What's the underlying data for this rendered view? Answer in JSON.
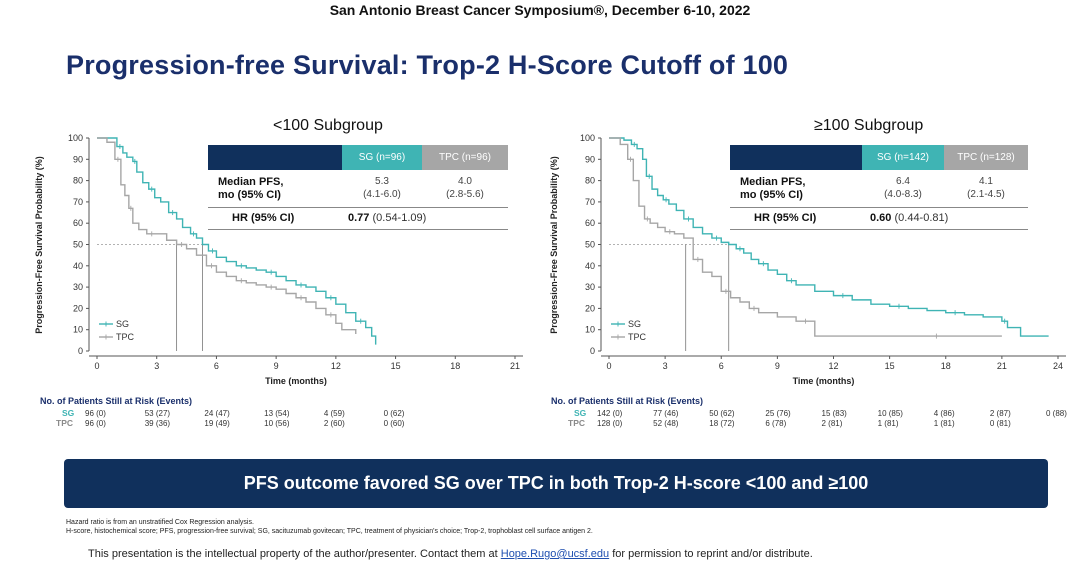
{
  "header": {
    "conference": "San Antonio Breast Cancer Symposium®, December 6-10, 2022",
    "title": "Progression-free Survival: Trop-2 H-Score Cutoff of 100"
  },
  "colors": {
    "navy": "#10305c",
    "sg": "#3fb4b4",
    "tpc": "#a6a6a6",
    "title": "#1a2f6b"
  },
  "panels": [
    {
      "subtitle": "<100 Subgroup",
      "table": {
        "sg_header": "SG (n=96)",
        "tpc_header": "TPC (n=96)",
        "median_label_1": "Median PFS,",
        "median_label_2": "mo (95% CI)",
        "sg_median": "5.3",
        "sg_ci": "(4.1-6.0)",
        "tpc_median": "4.0",
        "tpc_ci": "(2.8-5.6)",
        "hr_label": "HR (95% CI)",
        "hr_value": "0.77",
        "hr_ci": "(0.54-1.09)"
      },
      "risk": {
        "title": "No. of Patients Still at Risk (Events)",
        "sg_label": "SG",
        "tpc_label": "TPC",
        "sg": [
          "96 (0)",
          "53 (27)",
          "24 (47)",
          "13 (54)",
          "4 (59)",
          "0 (62)"
        ],
        "tpc": [
          "96 (0)",
          "39 (36)",
          "19 (49)",
          "10 (56)",
          "2 (60)",
          "0 (60)"
        ]
      }
    },
    {
      "subtitle": "≥100 Subgroup",
      "table": {
        "sg_header": "SG (n=142)",
        "tpc_header": "TPC (n=128)",
        "median_label_1": "Median PFS,",
        "median_label_2": "mo (95% CI)",
        "sg_median": "6.4",
        "sg_ci": "(4.0-8.3)",
        "tpc_median": "4.1",
        "tpc_ci": "(2.1-4.5)",
        "hr_label": "HR (95% CI)",
        "hr_value": "0.60",
        "hr_ci": "(0.44-0.81)"
      },
      "risk": {
        "title": "No. of Patients Still at Risk (Events)",
        "sg_label": "SG",
        "tpc_label": "TPC",
        "sg": [
          "142 (0)",
          "77 (46)",
          "50 (62)",
          "25 (76)",
          "15 (83)",
          "10 (85)",
          "4 (86)",
          "2 (87)",
          "0 (88)"
        ],
        "tpc": [
          "128 (0)",
          "52 (48)",
          "18 (72)",
          "6 (78)",
          "2 (81)",
          "1 (81)",
          "1 (81)",
          "0 (81)"
        ]
      }
    }
  ],
  "chart_data": [
    {
      "type": "line",
      "title": "<100 Subgroup",
      "xlabel": "Time (months)",
      "ylabel": "Progression-Free Survival Probability (%)",
      "xlim": [
        0,
        21
      ],
      "ylim": [
        0,
        100
      ],
      "xticks": [
        0,
        3,
        6,
        9,
        12,
        15,
        18,
        21
      ],
      "yticks": [
        0,
        10,
        20,
        30,
        40,
        50,
        60,
        70,
        80,
        90,
        100
      ],
      "legend": [
        "SG",
        "TPC"
      ],
      "medians": {
        "SG": 5.3,
        "TPC": 4.0
      },
      "series": [
        {
          "name": "SG",
          "x": [
            0,
            0.8,
            1.0,
            1.3,
            1.5,
            1.8,
            2.0,
            2.3,
            2.6,
            2.9,
            3.2,
            3.6,
            4.0,
            4.3,
            4.7,
            5.0,
            5.3,
            5.6,
            6.0,
            6.5,
            7.0,
            7.5,
            8.0,
            8.5,
            9.0,
            9.5,
            10.0,
            10.5,
            11.0,
            11.5,
            12.0,
            12.5,
            13.0,
            13.5,
            13.8,
            14.0
          ],
          "y": [
            100,
            100,
            96,
            93,
            91,
            89,
            84,
            79,
            76,
            72,
            70,
            65,
            62,
            58,
            55,
            53,
            50,
            47,
            44,
            42,
            40,
            39,
            38,
            37,
            35,
            33,
            31,
            30,
            28,
            25,
            22,
            18,
            14,
            11,
            7,
            3
          ]
        },
        {
          "name": "TPC",
          "x": [
            0,
            0.5,
            0.9,
            1.2,
            1.4,
            1.6,
            1.8,
            2.1,
            2.5,
            3.0,
            3.5,
            4.0,
            4.5,
            5.0,
            5.5,
            6.0,
            6.5,
            7.0,
            7.5,
            8.0,
            8.5,
            9.0,
            9.5,
            10.0,
            10.5,
            11.0,
            11.5,
            12.0,
            12.3,
            13.0
          ],
          "y": [
            100,
            98,
            90,
            78,
            73,
            67,
            60,
            57,
            55,
            55,
            52,
            50,
            48,
            45,
            40,
            37,
            35,
            33,
            32,
            31,
            30,
            29,
            27,
            25,
            23,
            20,
            17,
            13,
            10,
            8
          ]
        }
      ]
    },
    {
      "type": "line",
      "title": "≥100 Subgroup",
      "xlabel": "Time (months)",
      "ylabel": "Progression-Free Survival Probability (%)",
      "xlim": [
        0,
        24
      ],
      "ylim": [
        0,
        100
      ],
      "xticks": [
        0,
        3,
        6,
        9,
        12,
        15,
        18,
        21,
        24
      ],
      "yticks": [
        0,
        10,
        20,
        30,
        40,
        50,
        60,
        70,
        80,
        90,
        100
      ],
      "legend": [
        "SG",
        "TPC"
      ],
      "medians": {
        "SG": 6.4,
        "TPC": 4.1
      },
      "series": [
        {
          "name": "SG",
          "x": [
            0,
            0.8,
            1.2,
            1.5,
            1.8,
            2.0,
            2.3,
            2.6,
            2.9,
            3.2,
            3.6,
            4.0,
            4.5,
            5.0,
            5.5,
            6.0,
            6.4,
            6.8,
            7.2,
            7.6,
            8.0,
            8.5,
            9.0,
            9.5,
            10.0,
            11.0,
            12.0,
            13.0,
            14.0,
            15.0,
            16.0,
            17.0,
            18.0,
            19.0,
            20.0,
            21.0,
            21.3,
            22.0,
            23.5
          ],
          "y": [
            100,
            99,
            97,
            95,
            90,
            82,
            76,
            73,
            71,
            69,
            66,
            62,
            58,
            55,
            53,
            51,
            50,
            48,
            46,
            43,
            41,
            38,
            36,
            33,
            31,
            28,
            26,
            24,
            22,
            21,
            20,
            19,
            18,
            17,
            16,
            14,
            11,
            7,
            7
          ]
        },
        {
          "name": "TPC",
          "x": [
            0,
            0.6,
            1.0,
            1.3,
            1.6,
            1.9,
            2.2,
            2.6,
            3.0,
            3.5,
            4.0,
            4.5,
            5.0,
            5.5,
            6.0,
            6.5,
            7.0,
            7.5,
            8.0,
            9.0,
            10.0,
            11.0,
            12.0,
            14.0,
            21.0
          ],
          "y": [
            100,
            97,
            90,
            80,
            68,
            62,
            60,
            58,
            56,
            55,
            53,
            43,
            37,
            35,
            28,
            25,
            23,
            20,
            18,
            16,
            14,
            7,
            7,
            7,
            7
          ]
        }
      ]
    }
  ],
  "banner": "PFS outcome favored SG over TPC in both Trop-2 H-score <100 and ≥100",
  "footnotes": [
    "Hazard ratio is from an unstratified Cox Regression analysis.",
    "H-score, histochemical score; PFS, progression-free survival; SG, sacituzumab govitecan; TPC, treatment of physician's choice; Trop-2, trophoblast cell surface antigen 2."
  ],
  "ip_notice": {
    "prefix": "This presentation is the intellectual property of the author/presenter. Contact them at",
    "email": "Hope.Rugo@ucsf.edu",
    "suffix": "for permission to reprint and/or distribute."
  }
}
